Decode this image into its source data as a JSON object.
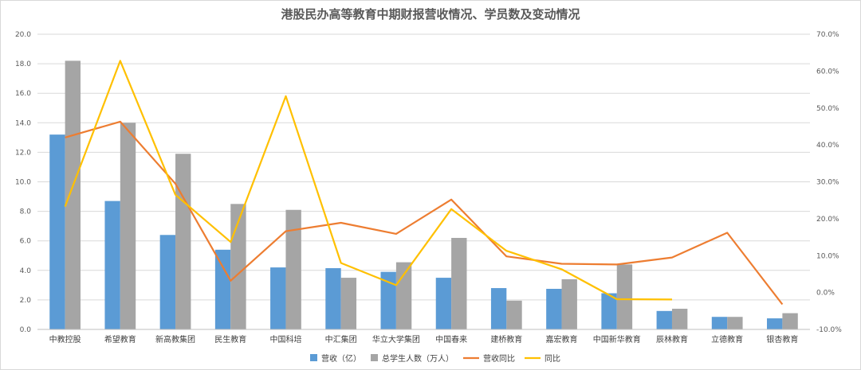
{
  "chart_data": {
    "type": "bar",
    "title": "港股民办高等教育中期财报营收情况、学员数及变动情况",
    "categories": [
      "中教控股",
      "希望教育",
      "新高教集团",
      "民生教育",
      "中国科培",
      "中汇集团",
      "华立大学集团",
      "中国春来",
      "建桥教育",
      "嘉宏教育",
      "中国新华教育",
      "辰林教育",
      "立德教育",
      "银杏教育"
    ],
    "series": [
      {
        "name": "营收（亿）",
        "type": "bar",
        "axis": "left",
        "color": "#5b9bd5",
        "values": [
          13.2,
          8.7,
          6.4,
          5.4,
          4.2,
          4.15,
          3.9,
          3.5,
          2.8,
          2.75,
          2.45,
          1.25,
          0.85,
          0.75
        ]
      },
      {
        "name": "总学生人数（万人）",
        "type": "bar",
        "axis": "left",
        "color": "#a5a5a5",
        "values": [
          18.2,
          14.0,
          11.9,
          8.5,
          8.1,
          3.5,
          4.55,
          6.2,
          1.95,
          3.4,
          4.4,
          1.4,
          0.85,
          1.1
        ]
      },
      {
        "name": "营收同比",
        "type": "line",
        "axis": "right",
        "color": "#ed7d31",
        "values": [
          42.0,
          46.3,
          29.5,
          3.2,
          16.6,
          18.9,
          15.9,
          25.2,
          9.8,
          7.8,
          7.6,
          9.5,
          16.2,
          -3.2
        ]
      },
      {
        "name": "同比",
        "type": "line",
        "axis": "right",
        "color": "#ffc000",
        "values": [
          23.3,
          62.8,
          26.5,
          13.7,
          53.2,
          8.0,
          2.0,
          22.6,
          11.3,
          6.3,
          -1.8,
          -1.9,
          null,
          null
        ]
      }
    ],
    "y_left": {
      "min": 0,
      "max": 20,
      "step": 2,
      "format": "0.0"
    },
    "y_right": {
      "min": -10,
      "max": 70,
      "step": 10,
      "format": "0.0%"
    },
    "grid": true,
    "legend_position": "bottom"
  }
}
